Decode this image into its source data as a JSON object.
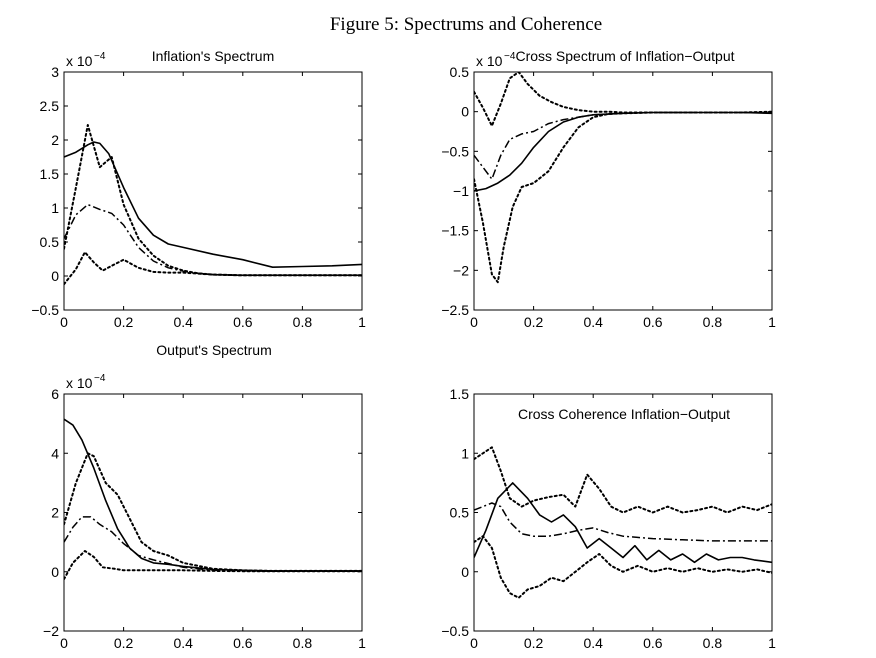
{
  "figure_title": "Figure 5: Spectrums and Coherence",
  "line_styles": {
    "estimate": "solid",
    "median": "dash-dot",
    "upper_band": "dotted",
    "lower_band": "dotted"
  },
  "chart_data": [
    {
      "type": "line",
      "id": "inflation-spectrum",
      "title": "Inflation's Spectrum",
      "scale_base": "x 10",
      "scale_exp": "−4",
      "xlim": [
        0,
        1
      ],
      "ylim": [
        -0.5,
        3
      ],
      "xticks": [
        0,
        0.2,
        0.4,
        0.6,
        0.8,
        1
      ],
      "xtick_labels": [
        "0",
        "0.2",
        "0.4",
        "0.6",
        "0.8",
        "1"
      ],
      "yticks": [
        -0.5,
        0,
        0.5,
        1,
        1.5,
        2,
        2.5,
        3
      ],
      "ytick_labels": [
        "−0.5",
        "0",
        "0.5",
        "1",
        "1.5",
        "2",
        "2.5",
        "3"
      ],
      "series": [
        {
          "name": "upper",
          "style": "dotted",
          "x": [
            0,
            0.04,
            0.08,
            0.12,
            0.16,
            0.2,
            0.25,
            0.3,
            0.35,
            0.4,
            0.45,
            0.5,
            0.6,
            0.7,
            0.8,
            0.9,
            1
          ],
          "y": [
            0.4,
            1.3,
            2.22,
            1.6,
            1.75,
            1.05,
            0.55,
            0.3,
            0.15,
            0.08,
            0.04,
            0.02,
            0.01,
            0.01,
            0.01,
            0.01,
            0.01
          ]
        },
        {
          "name": "estimate",
          "style": "solid",
          "x": [
            0,
            0.04,
            0.08,
            0.1,
            0.12,
            0.15,
            0.2,
            0.25,
            0.3,
            0.35,
            0.4,
            0.5,
            0.6,
            0.7,
            0.8,
            0.9,
            1
          ],
          "y": [
            1.75,
            1.82,
            1.93,
            1.97,
            1.95,
            1.8,
            1.3,
            0.85,
            0.6,
            0.47,
            0.42,
            0.32,
            0.24,
            0.13,
            0.14,
            0.15,
            0.17
          ]
        },
        {
          "name": "median",
          "style": "dashdot",
          "x": [
            0,
            0.04,
            0.08,
            0.12,
            0.16,
            0.2,
            0.25,
            0.3,
            0.35,
            0.4,
            0.45,
            0.5,
            0.6,
            0.7,
            0.8,
            0.9,
            1
          ],
          "y": [
            0.55,
            0.9,
            1.05,
            0.98,
            0.92,
            0.75,
            0.42,
            0.22,
            0.12,
            0.07,
            0.04,
            0.02,
            0.01,
            0.01,
            0.01,
            0.01,
            0.01
          ]
        },
        {
          "name": "lower",
          "style": "dotted",
          "x": [
            0,
            0.04,
            0.07,
            0.1,
            0.13,
            0.16,
            0.2,
            0.25,
            0.3,
            0.35,
            0.4,
            0.5,
            0.6,
            0.7,
            0.8,
            0.9,
            1
          ],
          "y": [
            -0.12,
            0.1,
            0.35,
            0.2,
            0.08,
            0.15,
            0.24,
            0.12,
            0.06,
            0.05,
            0.05,
            0.02,
            0.01,
            0.01,
            0.01,
            0.01,
            0.01
          ]
        }
      ]
    },
    {
      "type": "line",
      "id": "cross-spectrum",
      "title": "Cross Spectrum of Inflation−Output",
      "scale_base": "x 10",
      "scale_exp": "−4",
      "xlim": [
        0,
        1
      ],
      "ylim": [
        -2.5,
        0.5
      ],
      "xticks": [
        0,
        0.2,
        0.4,
        0.6,
        0.8,
        1
      ],
      "xtick_labels": [
        "0",
        "0.2",
        "0.4",
        "0.6",
        "0.8",
        "1"
      ],
      "yticks": [
        -2.5,
        -2,
        -1.5,
        -1,
        -0.5,
        0,
        0.5
      ],
      "ytick_labels": [
        "−2.5",
        "−2",
        "−1.5",
        "−1",
        "−0.5",
        "0",
        "0.5"
      ],
      "series": [
        {
          "name": "upper",
          "style": "dotted",
          "x": [
            0,
            0.03,
            0.06,
            0.09,
            0.12,
            0.15,
            0.18,
            0.22,
            0.26,
            0.3,
            0.35,
            0.4,
            0.45,
            0.5,
            0.6,
            0.7,
            0.8,
            0.9,
            1
          ],
          "y": [
            0.25,
            0.05,
            -0.18,
            0.1,
            0.42,
            0.5,
            0.35,
            0.2,
            0.12,
            0.06,
            0.02,
            0.0,
            0.0,
            -0.01,
            -0.01,
            -0.01,
            -0.01,
            -0.01,
            0.0
          ]
        },
        {
          "name": "estimate",
          "style": "solid",
          "x": [
            0,
            0.04,
            0.08,
            0.12,
            0.16,
            0.2,
            0.25,
            0.3,
            0.35,
            0.4,
            0.5,
            0.6,
            0.7,
            0.8,
            0.9,
            1
          ],
          "y": [
            -1.0,
            -0.97,
            -0.9,
            -0.8,
            -0.65,
            -0.45,
            -0.25,
            -0.13,
            -0.07,
            -0.04,
            -0.02,
            -0.01,
            -0.01,
            -0.01,
            -0.01,
            -0.02
          ]
        },
        {
          "name": "median",
          "style": "dashdot",
          "x": [
            0,
            0.03,
            0.06,
            0.09,
            0.12,
            0.16,
            0.2,
            0.25,
            0.3,
            0.35,
            0.4,
            0.5,
            0.6,
            0.7,
            0.8,
            0.9,
            1
          ],
          "y": [
            -0.55,
            -0.7,
            -0.85,
            -0.55,
            -0.35,
            -0.28,
            -0.25,
            -0.15,
            -0.1,
            -0.07,
            -0.04,
            -0.02,
            -0.01,
            -0.01,
            -0.01,
            -0.01,
            -0.01
          ]
        },
        {
          "name": "lower",
          "style": "dotted",
          "x": [
            0,
            0.03,
            0.06,
            0.08,
            0.1,
            0.13,
            0.16,
            0.2,
            0.25,
            0.3,
            0.35,
            0.4,
            0.45,
            0.5,
            0.6,
            0.7,
            0.8,
            0.9,
            1
          ],
          "y": [
            -0.85,
            -1.4,
            -2.05,
            -2.15,
            -1.7,
            -1.2,
            -0.95,
            -0.9,
            -0.75,
            -0.45,
            -0.2,
            -0.07,
            -0.03,
            -0.02,
            -0.01,
            -0.01,
            -0.01,
            -0.01,
            -0.01
          ]
        }
      ]
    },
    {
      "type": "line",
      "id": "output-spectrum",
      "title": "Output's Spectrum",
      "scale_base": "x 10",
      "scale_exp": "−4",
      "xlim": [
        0,
        1
      ],
      "ylim": [
        -2,
        6
      ],
      "xticks": [
        0,
        0.2,
        0.4,
        0.6,
        0.8,
        1
      ],
      "xtick_labels": [
        "0",
        "0.2",
        "0.4",
        "0.6",
        "0.8",
        "1"
      ],
      "yticks": [
        -2,
        0,
        2,
        4,
        6
      ],
      "ytick_labels": [
        "−2",
        "0",
        "2",
        "4",
        "6"
      ],
      "series": [
        {
          "name": "estimate",
          "style": "solid",
          "x": [
            0,
            0.03,
            0.06,
            0.1,
            0.14,
            0.18,
            0.22,
            0.26,
            0.3,
            0.35,
            0.4,
            0.5,
            0.6,
            0.7,
            0.8,
            0.9,
            1
          ],
          "y": [
            5.15,
            4.95,
            4.45,
            3.5,
            2.4,
            1.45,
            0.8,
            0.45,
            0.3,
            0.25,
            0.18,
            0.08,
            0.05,
            0.03,
            0.03,
            0.03,
            0.03
          ]
        },
        {
          "name": "upper",
          "style": "dotted",
          "x": [
            0,
            0.04,
            0.08,
            0.1,
            0.14,
            0.18,
            0.22,
            0.26,
            0.3,
            0.35,
            0.4,
            0.5,
            0.6,
            0.7,
            0.8,
            0.9,
            1
          ],
          "y": [
            1.6,
            3.0,
            4.0,
            3.9,
            3.0,
            2.6,
            1.8,
            1.0,
            0.7,
            0.55,
            0.3,
            0.1,
            0.05,
            0.03,
            0.03,
            0.03,
            0.03
          ]
        },
        {
          "name": "median",
          "style": "dashdot",
          "x": [
            0,
            0.03,
            0.06,
            0.09,
            0.12,
            0.16,
            0.2,
            0.25,
            0.3,
            0.35,
            0.4,
            0.5,
            0.6,
            0.7,
            0.8,
            0.9,
            1
          ],
          "y": [
            1.0,
            1.5,
            1.85,
            1.85,
            1.6,
            1.35,
            0.95,
            0.55,
            0.4,
            0.28,
            0.15,
            0.05,
            0.03,
            0.02,
            0.02,
            0.02,
            0.02
          ]
        },
        {
          "name": "lower",
          "style": "dotted",
          "x": [
            0,
            0.03,
            0.07,
            0.1,
            0.13,
            0.17,
            0.2,
            0.25,
            0.3,
            0.4,
            0.5,
            0.6,
            0.7,
            0.8,
            0.9,
            1
          ],
          "y": [
            -0.25,
            0.3,
            0.7,
            0.5,
            0.15,
            0.1,
            0.05,
            0.05,
            0.05,
            0.05,
            0.03,
            0.02,
            0.02,
            0.02,
            0.02,
            0.02
          ]
        }
      ]
    },
    {
      "type": "line",
      "id": "cross-coherence",
      "title": "Cross Coherence Inflation−Output",
      "scale_base": "",
      "scale_exp": "",
      "xlim": [
        0,
        1
      ],
      "ylim": [
        -0.5,
        1.5
      ],
      "xticks": [
        0,
        0.2,
        0.4,
        0.6,
        0.8,
        1
      ],
      "xtick_labels": [
        "0",
        "0.2",
        "0.4",
        "0.6",
        "0.8",
        "1"
      ],
      "yticks": [
        -0.5,
        0,
        0.5,
        1,
        1.5
      ],
      "ytick_labels": [
        "−0.5",
        "0",
        "0.5",
        "1",
        "1.5"
      ],
      "series": [
        {
          "name": "upper",
          "style": "dotted",
          "x": [
            0,
            0.03,
            0.06,
            0.09,
            0.12,
            0.16,
            0.2,
            0.25,
            0.3,
            0.34,
            0.38,
            0.42,
            0.46,
            0.5,
            0.55,
            0.6,
            0.65,
            0.7,
            0.75,
            0.8,
            0.85,
            0.9,
            0.95,
            1
          ],
          "y": [
            0.95,
            1.0,
            1.05,
            0.85,
            0.62,
            0.55,
            0.6,
            0.63,
            0.65,
            0.55,
            0.82,
            0.7,
            0.55,
            0.5,
            0.55,
            0.5,
            0.55,
            0.5,
            0.52,
            0.55,
            0.5,
            0.55,
            0.52,
            0.57
          ]
        },
        {
          "name": "estimate",
          "style": "solid",
          "x": [
            0,
            0.04,
            0.08,
            0.13,
            0.18,
            0.22,
            0.26,
            0.3,
            0.34,
            0.38,
            0.42,
            0.46,
            0.5,
            0.54,
            0.58,
            0.62,
            0.66,
            0.7,
            0.74,
            0.78,
            0.82,
            0.86,
            0.9,
            0.94,
            1
          ],
          "y": [
            0.12,
            0.35,
            0.62,
            0.75,
            0.62,
            0.48,
            0.42,
            0.48,
            0.38,
            0.2,
            0.28,
            0.2,
            0.12,
            0.22,
            0.1,
            0.18,
            0.1,
            0.15,
            0.08,
            0.15,
            0.1,
            0.12,
            0.12,
            0.1,
            0.08
          ]
        },
        {
          "name": "median",
          "style": "dashdot",
          "x": [
            0,
            0.03,
            0.06,
            0.09,
            0.12,
            0.16,
            0.2,
            0.25,
            0.3,
            0.35,
            0.4,
            0.45,
            0.5,
            0.6,
            0.7,
            0.8,
            0.9,
            1
          ],
          "y": [
            0.52,
            0.55,
            0.58,
            0.55,
            0.42,
            0.32,
            0.3,
            0.3,
            0.32,
            0.35,
            0.37,
            0.33,
            0.3,
            0.28,
            0.27,
            0.26,
            0.26,
            0.26
          ]
        },
        {
          "name": "lower",
          "style": "dotted",
          "x": [
            0,
            0.03,
            0.06,
            0.09,
            0.12,
            0.15,
            0.18,
            0.22,
            0.26,
            0.3,
            0.34,
            0.38,
            0.42,
            0.46,
            0.5,
            0.55,
            0.6,
            0.65,
            0.7,
            0.75,
            0.8,
            0.85,
            0.9,
            0.95,
            1
          ],
          "y": [
            0.25,
            0.3,
            0.2,
            -0.05,
            -0.18,
            -0.22,
            -0.15,
            -0.12,
            -0.05,
            -0.08,
            0.0,
            0.08,
            0.15,
            0.05,
            0.0,
            0.05,
            0.0,
            0.03,
            0.0,
            0.03,
            0.0,
            0.02,
            0.0,
            0.02,
            -0.01
          ]
        }
      ]
    }
  ]
}
